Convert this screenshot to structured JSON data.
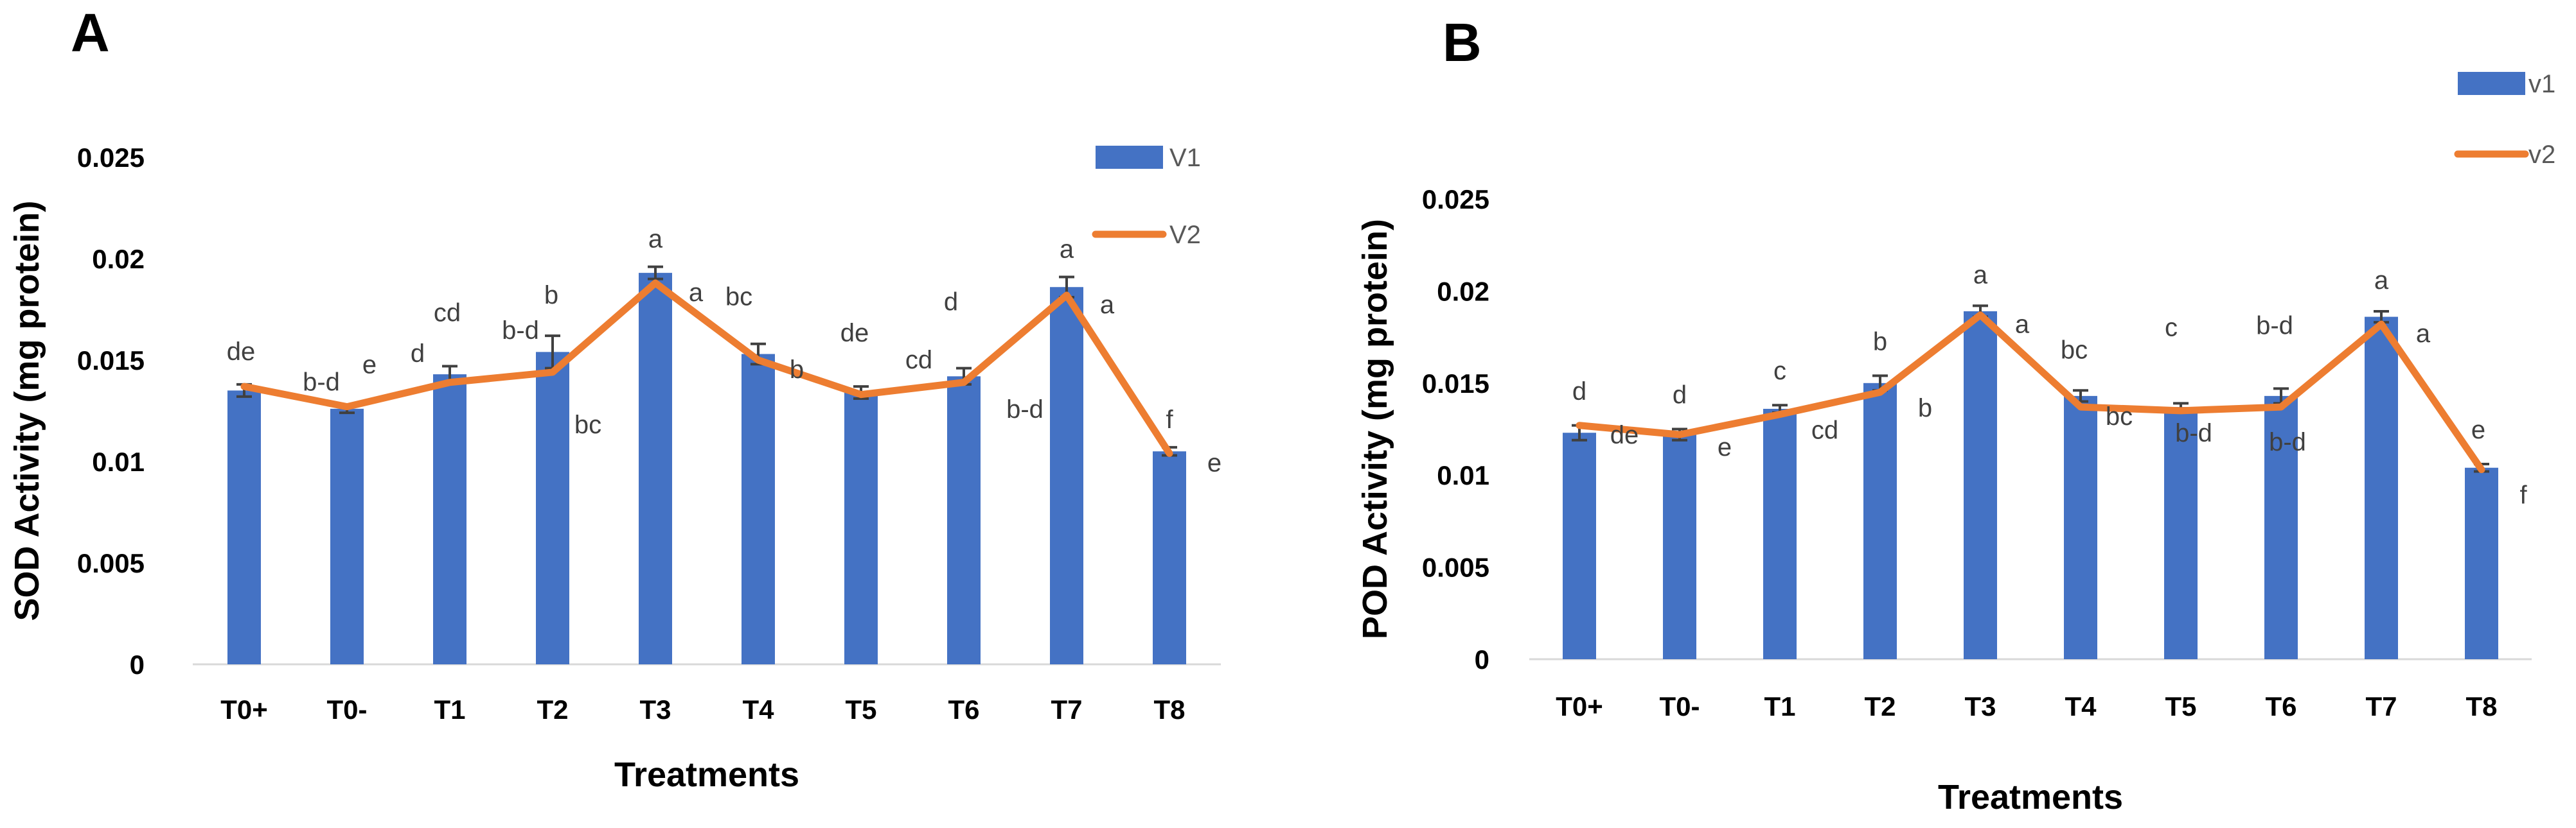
{
  "chart_data": [
    {
      "panel": "A",
      "type": "bar+line",
      "categories": [
        "T0+",
        "T0-",
        "T1",
        "T2",
        "T3",
        "T4",
        "T5",
        "T6",
        "T7",
        "T8"
      ],
      "series": [
        {
          "name": "V1",
          "type": "bar",
          "color": "#4472C4",
          "values": [
            0.0135,
            0.0126,
            0.0143,
            0.0154,
            0.0193,
            0.0153,
            0.0134,
            0.0142,
            0.0186,
            0.0105
          ],
          "errors": [
            0.0003,
            0.0002,
            0.0004,
            0.0008,
            0.0003,
            0.0005,
            0.0003,
            0.0004,
            0.0005,
            0.0002
          ],
          "letters": [
            "de",
            "b-d",
            "cd",
            "b",
            "a",
            "bc",
            "de",
            "d",
            "a",
            "f"
          ]
        },
        {
          "name": "V2",
          "type": "line",
          "color": "#ED7D31",
          "values": [
            0.0137,
            0.0127,
            0.0139,
            0.0144,
            0.0188,
            0.015,
            0.0133,
            0.0139,
            0.0182,
            0.0104
          ],
          "letters": [
            "",
            "e",
            "d",
            "b-d",
            "a",
            "b",
            "",
            "cd",
            "a",
            "e"
          ],
          "letters_extra": [
            "",
            "",
            "",
            "bc",
            "",
            "",
            "",
            "b-d",
            "",
            ""
          ]
        }
      ],
      "ylabel": "SOD Activity (mg protein)",
      "xlabel": "Treatments",
      "yticks": [
        "0",
        "0.005",
        "0.01",
        "0.015",
        "0.02",
        "0.025"
      ],
      "ylim": [
        0,
        0.025
      ],
      "legend": [
        "V1",
        "V2"
      ],
      "legend_position": "top-right"
    },
    {
      "panel": "B",
      "type": "bar+line",
      "categories": [
        "T0+",
        "T0-",
        "T1",
        "T2",
        "T3",
        "T4",
        "T5",
        "T6",
        "T7",
        "T8"
      ],
      "series": [
        {
          "name": "v1",
          "type": "bar",
          "color": "#4472C4",
          "values": [
            0.0123,
            0.0122,
            0.0136,
            0.015,
            0.0189,
            0.0143,
            0.0137,
            0.0143,
            0.0186,
            0.0104
          ],
          "errors": [
            0.0004,
            0.0003,
            0.0002,
            0.0004,
            0.0003,
            0.0003,
            0.0002,
            0.0004,
            0.0003,
            0.0002
          ],
          "letters": [
            "d",
            "d",
            "c",
            "b",
            "a",
            "bc",
            "c",
            "b-d",
            "a",
            "e"
          ]
        },
        {
          "name": "v2",
          "type": "line",
          "color": "#ED7D31",
          "values": [
            0.0127,
            0.0122,
            0.0133,
            0.0145,
            0.0187,
            0.0137,
            0.0135,
            0.0137,
            0.0182,
            0.0103
          ],
          "letters": [
            "de",
            "e",
            "cd",
            "b",
            "a",
            "bc",
            "b-d",
            "b-d",
            "a",
            "f"
          ]
        }
      ],
      "ylabel": "POD Activity (mg protein)",
      "xlabel": "Treatments",
      "yticks": [
        "0",
        "0.005",
        "0.01",
        "0.015",
        "0.02",
        "0.025"
      ],
      "ylim": [
        0,
        0.025
      ],
      "legend": [
        "v1",
        "v2"
      ],
      "legend_position": "top-right"
    }
  ]
}
